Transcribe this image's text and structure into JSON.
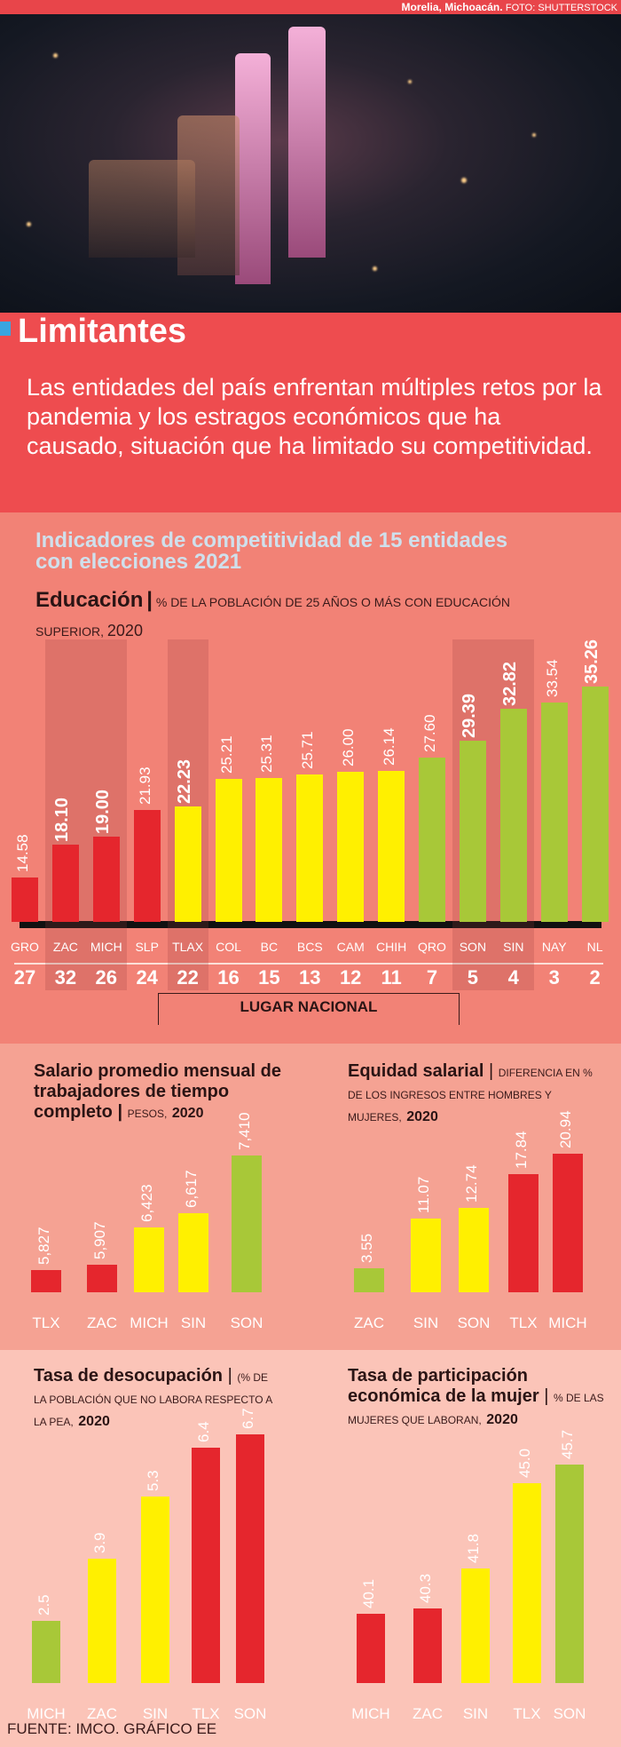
{
  "header": {
    "caption_bold": "Morelia, Michoacán.",
    "caption_credit": "FOTO: SHUTTERSTOCK"
  },
  "intro": {
    "title": "Limitantes",
    "text": "Las entidades del país enfrentan múltiples retos por la pandemia y los estragos económicos que ha causado, situación que ha limitado su competitividad."
  },
  "colors": {
    "red": "#e5262d",
    "yellow": "#fff000",
    "green": "#a8c838"
  },
  "main": {
    "title": "Indicadores de competitividad de 15 entidades con elecciones 2021",
    "rank_label": "LUGAR NACIONAL"
  },
  "chart_data": [
    {
      "type": "bar",
      "title": "Educación",
      "subtitle": "% de la población de 25 años o más con educación superior,",
      "year": "2020",
      "categories": [
        "GRO",
        "ZAC",
        "MICH",
        "SLP",
        "TLAX",
        "COL",
        "BC",
        "BCS",
        "CAM",
        "CHIH",
        "QRO",
        "SON",
        "SIN",
        "NAY",
        "NL"
      ],
      "values": [
        14.58,
        18.1,
        19.0,
        21.93,
        22.23,
        25.21,
        25.31,
        25.71,
        26.0,
        26.14,
        27.6,
        29.39,
        32.82,
        33.54,
        35.26
      ],
      "labels": [
        "14.58",
        "18.10",
        "19.00",
        "21.93",
        "22.23",
        "25.21",
        "25.31",
        "25.71",
        "26.00",
        "26.14",
        "27.60",
        "29.39",
        "32.82",
        "33.54",
        "35.26"
      ],
      "colors": [
        "red",
        "red",
        "red",
        "red",
        "yellow",
        "yellow",
        "yellow",
        "yellow",
        "yellow",
        "yellow",
        "green",
        "green",
        "green",
        "green",
        "green"
      ],
      "bold": [
        false,
        true,
        true,
        false,
        true,
        false,
        false,
        false,
        false,
        false,
        false,
        true,
        true,
        false,
        true
      ],
      "highlighted": [
        "ZAC",
        "MICH",
        "TLAX",
        "SON",
        "SIN"
      ],
      "ranks": [
        "27",
        "32",
        "26",
        "24",
        "22",
        "16",
        "15",
        "13",
        "12",
        "11",
        "7",
        "5",
        "4",
        "3",
        "2"
      ]
    },
    {
      "type": "bar",
      "title": "Salario promedio mensual de trabajadores de tiempo completo",
      "subtitle": "pesos,",
      "year": "2020",
      "categories": [
        "TLX",
        "ZAC",
        "MICH",
        "SIN",
        "SON"
      ],
      "values": [
        5827,
        5907,
        6423,
        6617,
        7410
      ],
      "labels": [
        "5,827",
        "5,907",
        "6,423",
        "6,617",
        "7,410"
      ],
      "colors": [
        "red",
        "red",
        "yellow",
        "yellow",
        "green"
      ]
    },
    {
      "type": "bar",
      "title": "Equidad salarial",
      "subtitle": "diferencia en % de los ingresos entre hombres y mujeres,",
      "year": "2020",
      "categories": [
        "ZAC",
        "SIN",
        "SON",
        "TLX",
        "MICH"
      ],
      "values": [
        3.55,
        11.07,
        12.74,
        17.84,
        20.94
      ],
      "labels": [
        "3.55",
        "11.07",
        "12.74",
        "17.84",
        "20.94"
      ],
      "colors": [
        "green",
        "yellow",
        "yellow",
        "red",
        "red"
      ]
    },
    {
      "type": "bar",
      "title": "Tasa de desocupación",
      "subtitle": "(% de la población que no labora respecto a la pea,",
      "year": "2020",
      "categories": [
        "MICH",
        "ZAC",
        "SIN",
        "TLX",
        "SON"
      ],
      "values": [
        2.5,
        3.9,
        5.3,
        6.4,
        6.7
      ],
      "labels": [
        "2.5",
        "3.9",
        "5.3",
        "6.4",
        "6.7"
      ],
      "colors": [
        "green",
        "yellow",
        "yellow",
        "red",
        "red"
      ]
    },
    {
      "type": "bar",
      "title": "Tasa de participación económica de la mujer",
      "subtitle": "% de las mujeres que laboran,",
      "year": "2020",
      "categories": [
        "MICH",
        "ZAC",
        "SIN",
        "TLX",
        "SON"
      ],
      "values": [
        40.1,
        40.3,
        41.8,
        45.0,
        45.7
      ],
      "labels": [
        "40.1",
        "40.3",
        "41.8",
        "45.0",
        "45.7"
      ],
      "colors": [
        "red",
        "red",
        "yellow",
        "yellow",
        "green"
      ]
    }
  ],
  "footer": "FUENTE: IMCO. GRÁFICO EE"
}
